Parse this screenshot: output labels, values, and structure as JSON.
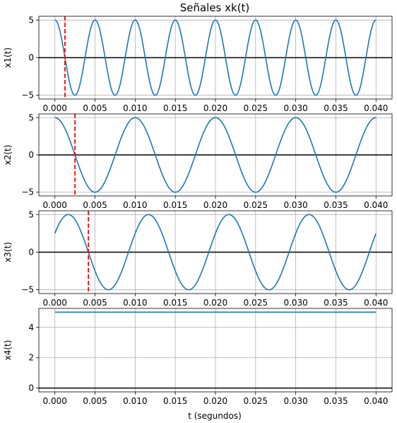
{
  "title": "Señales xk(t)",
  "xlabel": "t (segundos)",
  "colors": {
    "signal": "#1f77b4",
    "marker": "#ff0000",
    "zero_line": "#000000",
    "grid": "#b0b0b0"
  },
  "chart_data": [
    {
      "type": "line",
      "ylabel": "x1(t)",
      "xlim": [
        -0.002,
        0.042
      ],
      "ylim": [
        -5.5,
        5.5
      ],
      "xticks": [
        "0.000",
        "0.005",
        "0.010",
        "0.015",
        "0.020",
        "0.025",
        "0.030",
        "0.035",
        "0.040"
      ],
      "yticks": [
        "5",
        "0",
        "−5"
      ],
      "grid": true,
      "series": [
        {
          "formula": "5*cos(2*pi*200*t)",
          "amplitude": 5,
          "frequency_hz": 200,
          "phase_rad": 0,
          "offset": 0,
          "t_start": 0,
          "t_end": 0.04
        }
      ],
      "zero_line_y": 0,
      "vertical_marker_x": 0.00125
    },
    {
      "type": "line",
      "ylabel": "x2(t)",
      "xlim": [
        -0.002,
        0.042
      ],
      "ylim": [
        -5.5,
        5.5
      ],
      "xticks": [
        "0.000",
        "0.005",
        "0.010",
        "0.015",
        "0.020",
        "0.025",
        "0.030",
        "0.035",
        "0.040"
      ],
      "yticks": [
        "5",
        "0",
        "−5"
      ],
      "grid": true,
      "series": [
        {
          "formula": "5*cos(2*pi*100*t)",
          "amplitude": 5,
          "frequency_hz": 100,
          "phase_rad": 0,
          "offset": 0,
          "t_start": 0,
          "t_end": 0.04
        }
      ],
      "zero_line_y": 0,
      "vertical_marker_x": 0.0025
    },
    {
      "type": "line",
      "ylabel": "x3(t)",
      "xlim": [
        -0.002,
        0.042
      ],
      "ylim": [
        -5.5,
        5.5
      ],
      "xticks": [
        "0.000",
        "0.005",
        "0.010",
        "0.015",
        "0.020",
        "0.025",
        "0.030",
        "0.035",
        "0.040"
      ],
      "yticks": [
        "5",
        "0",
        "−5"
      ],
      "grid": true,
      "series": [
        {
          "formula": "5*cos(2*pi*100*t - pi/3)",
          "amplitude": 5,
          "frequency_hz": 100,
          "phase_rad": -1.0472,
          "offset": 0,
          "t_start": 0,
          "t_end": 0.04
        }
      ],
      "zero_line_y": 0,
      "vertical_marker_x": 0.00417
    },
    {
      "type": "line",
      "ylabel": "x4(t)",
      "xlim": [
        -0.002,
        0.042
      ],
      "ylim": [
        -0.25,
        5.25
      ],
      "xticks": [
        "0.000",
        "0.005",
        "0.010",
        "0.015",
        "0.020",
        "0.025",
        "0.030",
        "0.035",
        "0.040"
      ],
      "yticks": [
        "4",
        "2",
        "0"
      ],
      "grid": true,
      "series": [
        {
          "formula": "5",
          "amplitude": 0,
          "frequency_hz": 0,
          "phase_rad": 0,
          "offset": 5,
          "t_start": 0,
          "t_end": 0.04
        }
      ],
      "zero_line_y": 0
    }
  ]
}
